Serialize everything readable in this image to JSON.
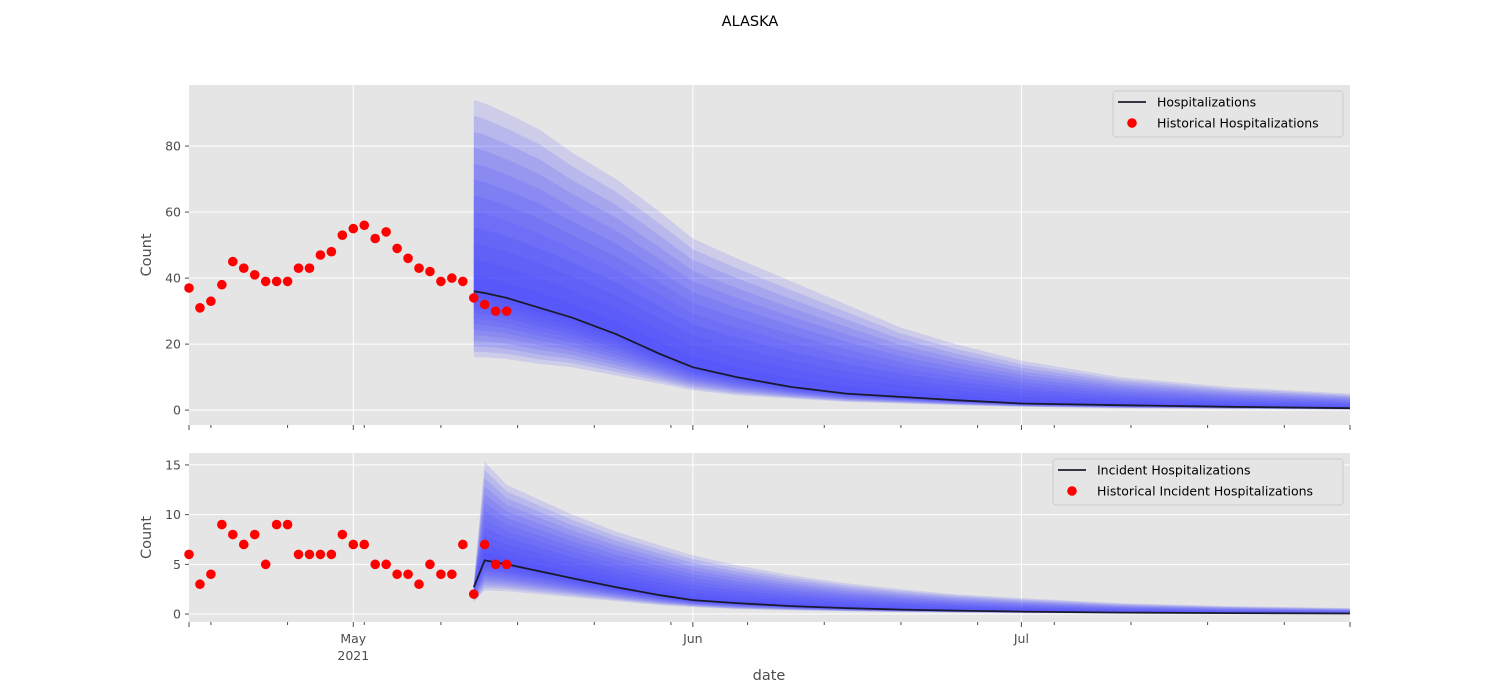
{
  "figure": {
    "title": "ALASKA",
    "xlabel": "date",
    "xaxis_type": "date",
    "xlim": [
      "2021-04-16",
      "2021-07-31"
    ],
    "x_ticks": [
      {
        "date": "2021-05-01",
        "label": "May",
        "sublabel": "2021"
      },
      {
        "date": "2021-06-01",
        "label": "Jun",
        "sublabel": ""
      },
      {
        "date": "2021-07-01",
        "label": "Jul",
        "sublabel": ""
      }
    ],
    "colors": {
      "background": "#e5e5e5",
      "grid": "#ffffff",
      "band": "#4040ff",
      "line": "#1a1a2e",
      "points": "#ff0000"
    }
  },
  "chart_data": [
    {
      "type": "line",
      "ylabel": "Count",
      "ylim": [
        -4.5,
        98.5
      ],
      "y_ticks": [
        0,
        20,
        40,
        60,
        80
      ],
      "grid": true,
      "legend_position": "top-right",
      "legend": [
        "Hospitalizations",
        "Historical Hospitalizations"
      ],
      "series": [
        {
          "name": "Hospitalizations",
          "style": "line",
          "x": [
            "2021-05-12",
            "2021-05-13",
            "2021-05-15",
            "2021-05-18",
            "2021-05-21",
            "2021-05-25",
            "2021-05-29",
            "2021-06-01",
            "2021-06-05",
            "2021-06-10",
            "2021-06-15",
            "2021-06-20",
            "2021-06-25",
            "2021-07-01",
            "2021-07-10",
            "2021-07-20",
            "2021-07-31"
          ],
          "values": [
            36,
            35.5,
            34,
            31,
            28,
            23,
            17,
            13,
            10,
            7,
            5,
            4,
            3,
            2,
            1.5,
            1,
            0.6
          ]
        },
        {
          "name": "Historical Hospitalizations",
          "style": "scatter",
          "x": [
            "2021-04-16",
            "2021-04-17",
            "2021-04-18",
            "2021-04-19",
            "2021-04-20",
            "2021-04-21",
            "2021-04-22",
            "2021-04-23",
            "2021-04-24",
            "2021-04-25",
            "2021-04-26",
            "2021-04-27",
            "2021-04-28",
            "2021-04-29",
            "2021-04-30",
            "2021-05-01",
            "2021-05-02",
            "2021-05-03",
            "2021-05-04",
            "2021-05-05",
            "2021-05-06",
            "2021-05-07",
            "2021-05-08",
            "2021-05-09",
            "2021-05-10",
            "2021-05-11",
            "2021-05-12",
            "2021-05-13",
            "2021-05-14",
            "2021-05-15"
          ],
          "values": [
            37,
            31,
            33,
            38,
            45,
            43,
            41,
            39,
            39,
            39,
            43,
            43,
            47,
            48,
            53,
            55,
            56,
            52,
            54,
            49,
            46,
            43,
            42,
            39,
            40,
            39,
            34,
            32,
            30,
            30
          ]
        }
      ],
      "forecast_band": {
        "x": [
          "2021-05-12",
          "2021-05-13",
          "2021-05-15",
          "2021-05-18",
          "2021-05-21",
          "2021-05-25",
          "2021-05-29",
          "2021-06-01",
          "2021-06-05",
          "2021-06-10",
          "2021-06-15",
          "2021-06-20",
          "2021-06-25",
          "2021-07-01",
          "2021-07-10",
          "2021-07-20",
          "2021-07-31"
        ],
        "upper": [
          94,
          93,
          90,
          85,
          78,
          70,
          60,
          52,
          46,
          39,
          32,
          25,
          20,
          15,
          10,
          7,
          5
        ],
        "lower": [
          16,
          16,
          15.5,
          14,
          13,
          10.5,
          8,
          6,
          4.5,
          3.5,
          2.5,
          2,
          1.5,
          1,
          0.6,
          0.4,
          0.2
        ]
      }
    },
    {
      "type": "line",
      "ylabel": "Count",
      "ylim": [
        -0.8,
        16.2
      ],
      "y_ticks": [
        0,
        5,
        10,
        15
      ],
      "grid": true,
      "legend_position": "top-right",
      "legend": [
        "Incident Hospitalizations",
        "Historical Incident Hospitalizations"
      ],
      "series": [
        {
          "name": "Incident Hospitalizations",
          "style": "line",
          "x": [
            "2021-05-12",
            "2021-05-13",
            "2021-05-15",
            "2021-05-18",
            "2021-05-21",
            "2021-05-25",
            "2021-05-29",
            "2021-06-01",
            "2021-06-05",
            "2021-06-10",
            "2021-06-15",
            "2021-06-20",
            "2021-06-25",
            "2021-07-01",
            "2021-07-10",
            "2021-07-20",
            "2021-07-31"
          ],
          "values": [
            2.7,
            5.4,
            5.0,
            4.3,
            3.6,
            2.7,
            1.9,
            1.4,
            1.1,
            0.8,
            0.6,
            0.45,
            0.35,
            0.25,
            0.15,
            0.1,
            0.06
          ]
        },
        {
          "name": "Historical Incident Hospitalizations",
          "style": "scatter",
          "x": [
            "2021-04-16",
            "2021-04-17",
            "2021-04-18",
            "2021-04-19",
            "2021-04-20",
            "2021-04-21",
            "2021-04-22",
            "2021-04-23",
            "2021-04-24",
            "2021-04-25",
            "2021-04-26",
            "2021-04-27",
            "2021-04-28",
            "2021-04-29",
            "2021-04-30",
            "2021-05-01",
            "2021-05-02",
            "2021-05-03",
            "2021-05-04",
            "2021-05-05",
            "2021-05-06",
            "2021-05-07",
            "2021-05-08",
            "2021-05-09",
            "2021-05-10",
            "2021-05-11",
            "2021-05-12",
            "2021-05-13",
            "2021-05-14",
            "2021-05-15"
          ],
          "values": [
            6,
            3,
            4,
            9,
            8,
            7,
            8,
            5,
            9,
            9,
            6,
            6,
            6,
            6,
            8,
            7,
            7,
            5,
            5,
            4,
            4,
            3,
            5,
            4,
            4,
            7,
            2,
            7,
            5,
            5
          ]
        }
      ],
      "forecast_band": {
        "x": [
          "2021-05-12",
          "2021-05-13",
          "2021-05-15",
          "2021-05-18",
          "2021-05-21",
          "2021-05-25",
          "2021-05-29",
          "2021-06-01",
          "2021-06-05",
          "2021-06-10",
          "2021-06-15",
          "2021-06-20",
          "2021-06-25",
          "2021-07-01",
          "2021-07-10",
          "2021-07-20",
          "2021-07-31"
        ],
        "upper": [
          3.0,
          15.3,
          13.0,
          11.5,
          10.0,
          8.3,
          6.9,
          5.9,
          4.9,
          3.9,
          3.1,
          2.5,
          2.0,
          1.6,
          1.1,
          0.8,
          0.6
        ],
        "lower": [
          1.2,
          2.4,
          2.3,
          2.0,
          1.7,
          1.3,
          0.9,
          0.7,
          0.5,
          0.38,
          0.28,
          0.2,
          0.15,
          0.1,
          0.07,
          0.05,
          0.03
        ]
      }
    }
  ]
}
